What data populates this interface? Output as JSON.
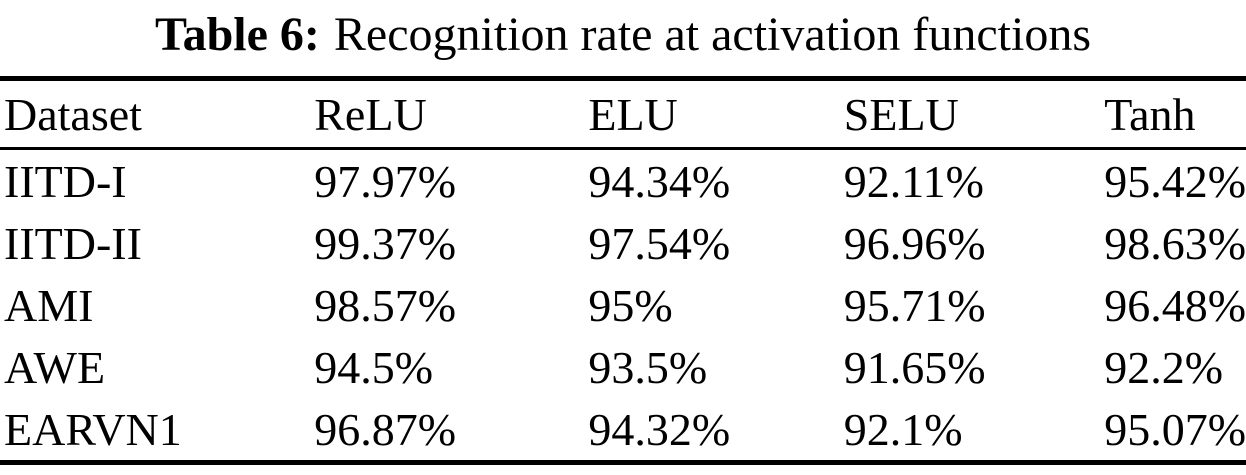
{
  "caption": {
    "label": "Table 6:",
    "text": "Recognition rate at activation functions"
  },
  "table": {
    "columns": [
      "Dataset",
      "ReLU",
      "ELU",
      "SELU",
      "Tanh"
    ],
    "rows": [
      [
        "IITD-I",
        "97.97%",
        "94.34%",
        "92.11%",
        "95.42%"
      ],
      [
        "IITD-II",
        "99.37%",
        "97.54%",
        "96.96%",
        "98.63%"
      ],
      [
        "AMI",
        "98.57%",
        "95%",
        "95.71%",
        "96.48%"
      ],
      [
        "AWE",
        "94.5%",
        "93.5%",
        "91.65%",
        "92.2%"
      ],
      [
        "EARVN1",
        "96.87%",
        "94.32%",
        "92.1%",
        "95.07%"
      ]
    ]
  },
  "colors": {
    "text": "#000000",
    "background": "#ffffff",
    "rule": "#000000"
  }
}
